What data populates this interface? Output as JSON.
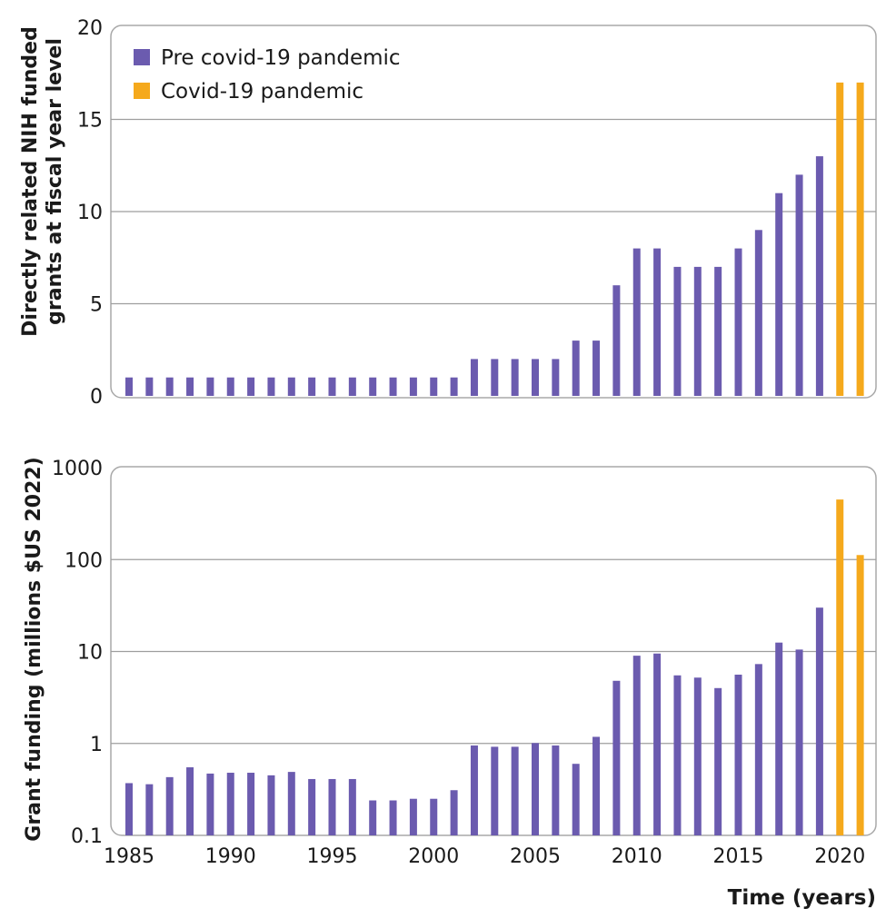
{
  "colors": {
    "pre": "#6B5BAF",
    "covid": "#F5A91C"
  },
  "legend": {
    "pre_label": "Pre covid-19 pandemic",
    "covid_label": "Covid-19 pandemic"
  },
  "x_axis": {
    "label": "Time (years)",
    "tick_labels": [
      "1985",
      "1990",
      "1995",
      "2000",
      "2005",
      "2010",
      "2015",
      "2020"
    ]
  },
  "chart_data": [
    {
      "type": "bar",
      "scale": "linear",
      "ylabel_line1": "Directly related NIH funded",
      "ylabel_line2": "grants at fiscal year level",
      "ylim": [
        0,
        20
      ],
      "y_ticks": [
        "0",
        "5",
        "10",
        "15",
        "20"
      ],
      "grid": true,
      "legend_position": "top-left",
      "x": [
        1985,
        1986,
        1987,
        1988,
        1989,
        1990,
        1991,
        1992,
        1993,
        1994,
        1995,
        1996,
        1997,
        1998,
        1999,
        2000,
        2001,
        2002,
        2003,
        2004,
        2005,
        2006,
        2007,
        2008,
        2009,
        2010,
        2011,
        2012,
        2013,
        2014,
        2015,
        2016,
        2017,
        2018,
        2019,
        2020,
        2021
      ],
      "series": [
        {
          "name": "Pre covid-19 pandemic",
          "values": [
            1,
            1,
            1,
            1,
            1,
            1,
            1,
            1,
            1,
            1,
            1,
            1,
            1,
            1,
            1,
            1,
            1,
            2,
            2,
            2,
            2,
            2,
            3,
            3,
            6,
            8,
            8,
            7,
            7,
            7,
            8,
            9,
            11,
            12,
            13,
            null,
            null
          ]
        },
        {
          "name": "Covid-19 pandemic",
          "values": [
            null,
            null,
            null,
            null,
            null,
            null,
            null,
            null,
            null,
            null,
            null,
            null,
            null,
            null,
            null,
            null,
            null,
            null,
            null,
            null,
            null,
            null,
            null,
            null,
            null,
            null,
            null,
            null,
            null,
            null,
            null,
            null,
            null,
            null,
            null,
            17,
            17
          ]
        }
      ]
    },
    {
      "type": "bar",
      "scale": "log",
      "ylabel": "Grant funding (millions $US 2022)",
      "ylim": [
        0.1,
        1000
      ],
      "y_ticks": [
        "0.1",
        "1",
        "10",
        "100",
        "1000"
      ],
      "grid": true,
      "x": [
        1985,
        1986,
        1987,
        1988,
        1989,
        1990,
        1991,
        1992,
        1993,
        1994,
        1995,
        1996,
        1997,
        1998,
        1999,
        2000,
        2001,
        2002,
        2003,
        2004,
        2005,
        2006,
        2007,
        2008,
        2009,
        2010,
        2011,
        2012,
        2013,
        2014,
        2015,
        2016,
        2017,
        2018,
        2019,
        2020,
        2021
      ],
      "series": [
        {
          "name": "Pre covid-19 pandemic",
          "values": [
            0.37,
            0.36,
            0.43,
            0.55,
            0.47,
            0.48,
            0.48,
            0.45,
            0.49,
            0.41,
            0.41,
            0.41,
            0.24,
            0.24,
            0.25,
            0.25,
            0.31,
            0.95,
            0.92,
            0.92,
            1.01,
            0.95,
            0.6,
            1.18,
            4.8,
            9,
            9.5,
            5.5,
            5.2,
            4,
            5.6,
            7.3,
            12.5,
            10.5,
            30,
            null,
            null
          ]
        },
        {
          "name": "Covid-19 pandemic",
          "values": [
            null,
            null,
            null,
            null,
            null,
            null,
            null,
            null,
            null,
            null,
            null,
            null,
            null,
            null,
            null,
            null,
            null,
            null,
            null,
            null,
            null,
            null,
            null,
            null,
            null,
            null,
            null,
            null,
            null,
            null,
            null,
            null,
            null,
            null,
            null,
            450,
            112
          ]
        }
      ]
    }
  ]
}
